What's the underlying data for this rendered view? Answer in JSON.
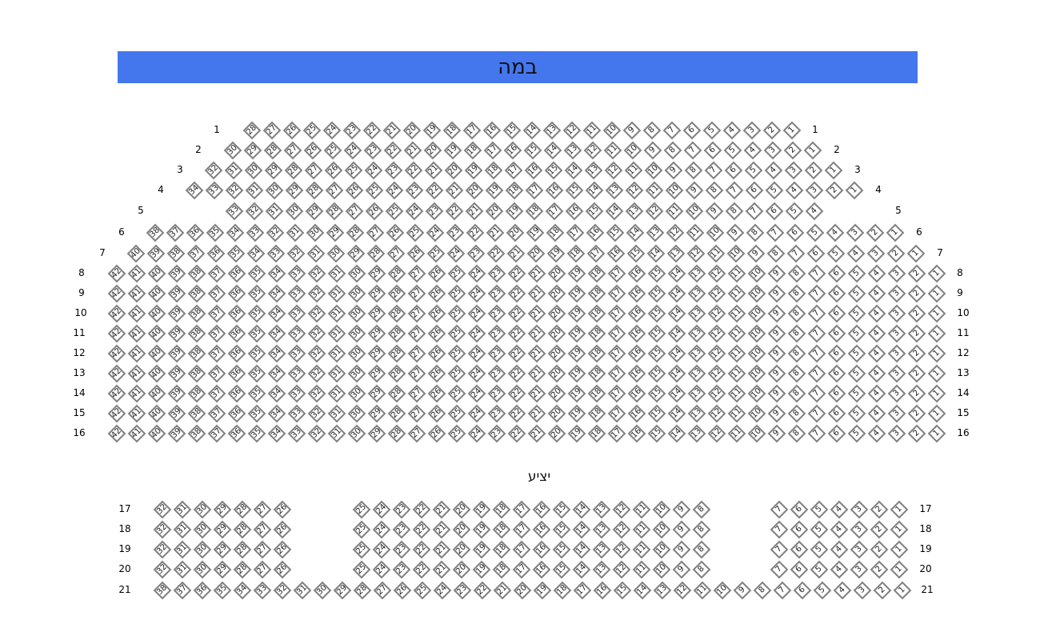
{
  "stage": {
    "label": "במה",
    "color": "#4477ee"
  },
  "balcony_label": "יציע",
  "seat_style": {
    "border": "#808080",
    "fill": "#ffffff"
  },
  "main_rows": [
    {
      "row": "1",
      "blocks": [
        {
          "from": 28,
          "to": 1
        }
      ]
    },
    {
      "row": "2",
      "blocks": [
        {
          "from": 30,
          "to": 1
        }
      ]
    },
    {
      "row": "3",
      "blocks": [
        {
          "from": 32,
          "to": 1
        }
      ]
    },
    {
      "row": "4",
      "blocks": [
        {
          "from": 34,
          "to": 1
        }
      ]
    },
    {
      "row": "5",
      "blocks": [
        {
          "from": 33,
          "to": 4
        }
      ]
    },
    {
      "row": "6",
      "blocks": [
        {
          "from": 38,
          "to": 1
        }
      ]
    },
    {
      "row": "7",
      "blocks": [
        {
          "from": 40,
          "to": 1
        }
      ]
    },
    {
      "row": "8",
      "blocks": [
        {
          "from": 42,
          "to": 1
        }
      ]
    },
    {
      "row": "9",
      "blocks": [
        {
          "from": 42,
          "to": 1
        }
      ]
    },
    {
      "row": "10",
      "blocks": [
        {
          "from": 42,
          "to": 1
        }
      ]
    },
    {
      "row": "11",
      "blocks": [
        {
          "from": 42,
          "to": 1
        }
      ]
    },
    {
      "row": "12",
      "blocks": [
        {
          "from": 42,
          "to": 1
        }
      ]
    },
    {
      "row": "13",
      "blocks": [
        {
          "from": 42,
          "to": 1
        }
      ]
    },
    {
      "row": "14",
      "blocks": [
        {
          "from": 42,
          "to": 1
        }
      ]
    },
    {
      "row": "15",
      "blocks": [
        {
          "from": 42,
          "to": 1
        }
      ]
    },
    {
      "row": "16",
      "blocks": [
        {
          "from": 42,
          "to": 1
        }
      ]
    }
  ],
  "balcony_rows": [
    {
      "row": "17",
      "blocks": [
        {
          "from": 32,
          "to": 26
        },
        {
          "from": 25,
          "to": 8
        },
        {
          "from": 7,
          "to": 1
        }
      ]
    },
    {
      "row": "18",
      "blocks": [
        {
          "from": 32,
          "to": 26
        },
        {
          "from": 25,
          "to": 8
        },
        {
          "from": 7,
          "to": 1
        }
      ]
    },
    {
      "row": "19",
      "blocks": [
        {
          "from": 32,
          "to": 26
        },
        {
          "from": 25,
          "to": 8
        },
        {
          "from": 7,
          "to": 1
        }
      ]
    },
    {
      "row": "20",
      "blocks": [
        {
          "from": 32,
          "to": 26
        },
        {
          "from": 25,
          "to": 8
        },
        {
          "from": 7,
          "to": 1
        }
      ]
    },
    {
      "row": "21",
      "blocks": [
        {
          "from": 38,
          "to": 1
        }
      ]
    }
  ]
}
